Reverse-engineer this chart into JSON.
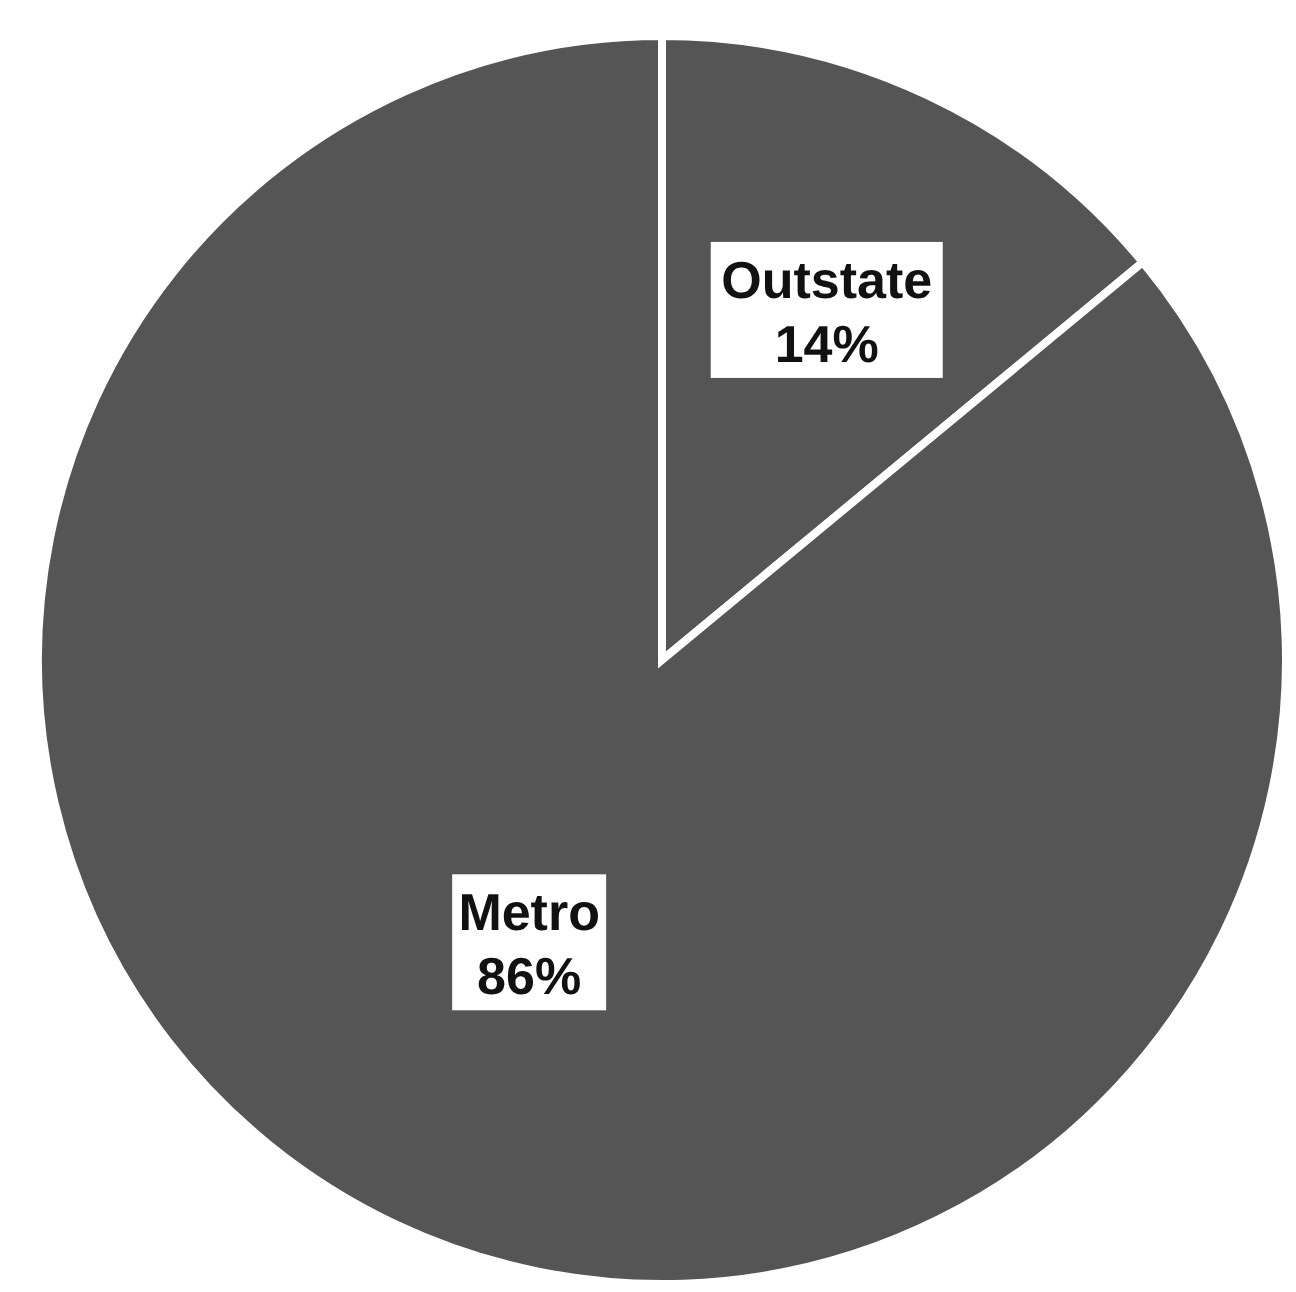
{
  "chart_data": {
    "type": "pie",
    "categories": [
      "Outstate",
      "Metro"
    ],
    "values": [
      14,
      86
    ],
    "colors": [
      "#555555",
      "#555555"
    ],
    "value_labels": [
      "14%",
      "86%"
    ]
  }
}
